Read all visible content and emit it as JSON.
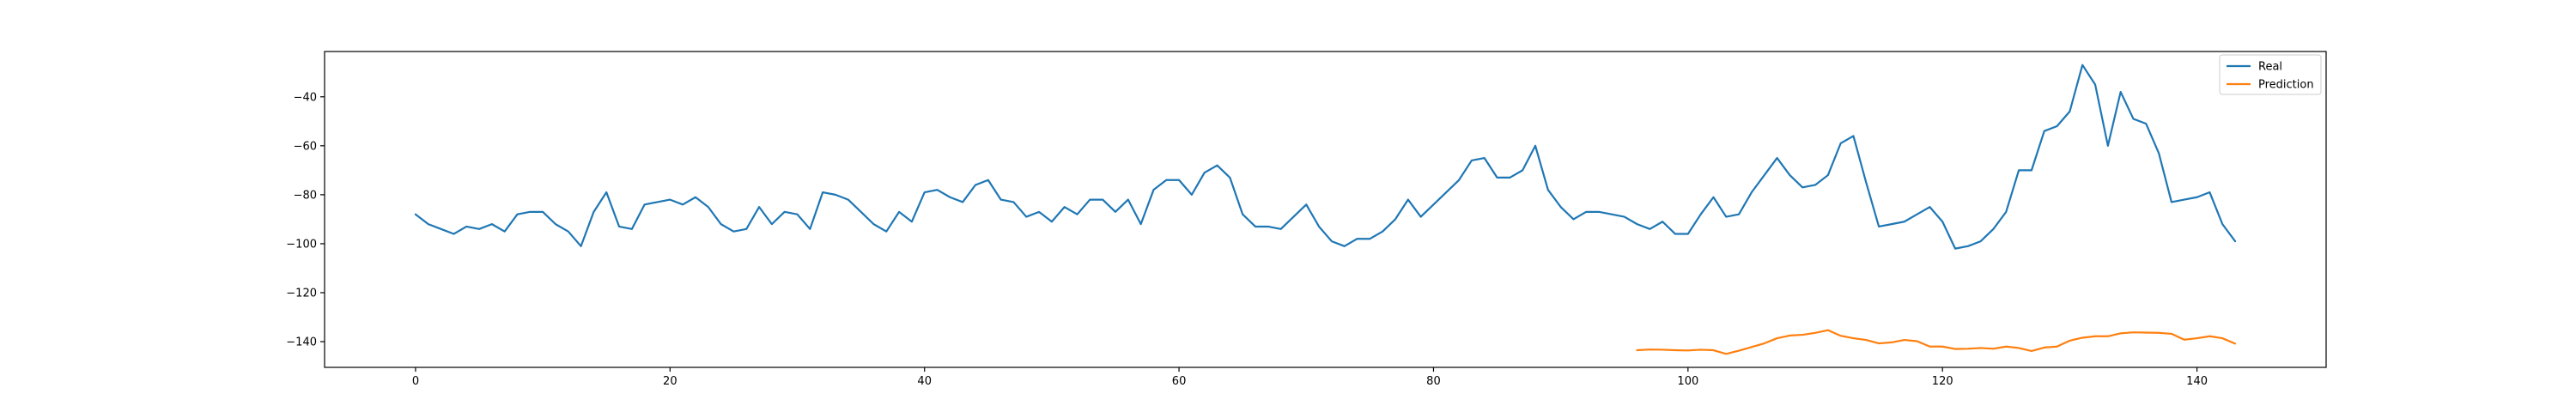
{
  "chart_data": {
    "type": "line",
    "title": "",
    "xlabel": "",
    "ylabel": "",
    "xlim": [
      -7.15,
      150.15
    ],
    "ylim": [
      -150.5,
      -21.5
    ],
    "xticks": [
      0,
      20,
      40,
      60,
      80,
      100,
      120,
      140
    ],
    "yticks": [
      -140,
      -120,
      -100,
      -80,
      -60,
      -40
    ],
    "grid": false,
    "legend_position": "top-right",
    "series": [
      {
        "name": "Real",
        "color": "#1f77b4",
        "x_start": 0,
        "values": [
          -88,
          -92,
          -94,
          -96,
          -93,
          -94,
          -92,
          -95,
          -88,
          -87,
          -87,
          -92,
          -95,
          -101,
          -87,
          -79,
          -93,
          -94,
          -84,
          -83,
          -82,
          -84,
          -81,
          -85,
          -92,
          -95,
          -94,
          -85,
          -92,
          -87,
          -88,
          -94,
          -79,
          -80,
          -82,
          -87,
          -92,
          -95,
          -87,
          -91,
          -79,
          -78,
          -81,
          -83,
          -76,
          -74,
          -82,
          -83,
          -89,
          -87,
          -91,
          -85,
          -88,
          -82,
          -82,
          -87,
          -82,
          -92,
          -78,
          -74,
          -74,
          -80,
          -71,
          -68,
          -73,
          -88,
          -93,
          -93,
          -94,
          -89,
          -84,
          -93,
          -99,
          -101,
          -98,
          -98,
          -95,
          -90,
          -82,
          -89,
          -84,
          -79,
          -74,
          -66,
          -65,
          -73,
          -73,
          -70,
          -60,
          -78,
          -85,
          -90,
          -87,
          -87,
          -88,
          -89,
          -92,
          -94,
          -91,
          -96,
          -96,
          -88,
          -81,
          -89,
          -88,
          -79,
          -72,
          -65,
          -72,
          -77,
          -76,
          -72,
          -59,
          -56,
          -75,
          -93,
          -92,
          -91,
          -88,
          -85,
          -91,
          -102,
          -101,
          -99,
          -94,
          -87,
          -70,
          -70,
          -54,
          -52,
          -46,
          -27,
          -35,
          -60,
          -38,
          -49,
          -51,
          -63,
          -83,
          -82,
          -81,
          -79,
          -92,
          -99
        ]
      },
      {
        "name": "Prediction",
        "color": "#ff7f0e",
        "x_start": 96,
        "values": [
          -143.5,
          -143.2,
          -143.3,
          -143.5,
          -143.6,
          -143.3,
          -143.5,
          -145,
          -143.7,
          -142.2,
          -140.7,
          -138.6,
          -137.5,
          -137.2,
          -136.4,
          -135.3,
          -137.6,
          -138.6,
          -139.3,
          -140.7,
          -140.3,
          -139.3,
          -139.8,
          -142,
          -142,
          -143,
          -142.9,
          -142.6,
          -142.9,
          -142,
          -142.6,
          -143.8,
          -142.4,
          -142,
          -139.6,
          -138.4,
          -137.8,
          -137.8,
          -136.6,
          -136.2,
          -136.3,
          -136.4,
          -136.8,
          -139.2,
          -138.6,
          -137.8,
          -138.6,
          -140.8
        ]
      }
    ]
  }
}
